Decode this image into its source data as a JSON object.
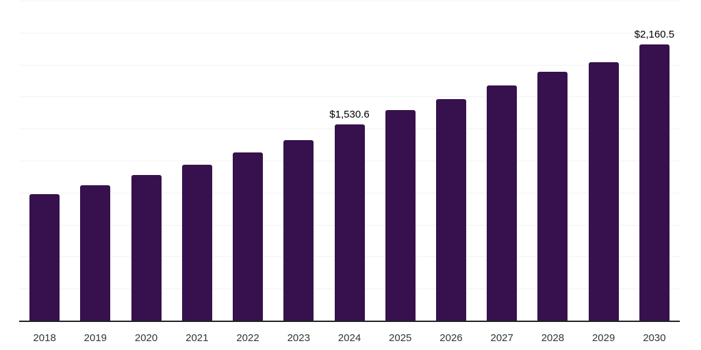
{
  "chart_data": {
    "type": "bar",
    "title": "",
    "xlabel": "",
    "ylabel": "",
    "categories": [
      "2018",
      "2019",
      "2020",
      "2021",
      "2022",
      "2023",
      "2024",
      "2025",
      "2026",
      "2027",
      "2028",
      "2029",
      "2030"
    ],
    "values": [
      987,
      1060,
      1136,
      1216,
      1312,
      1410,
      1530.6,
      1648,
      1733,
      1839,
      1946,
      2020,
      2160.5
    ],
    "data_labels": {
      "2024": "$1,530.6",
      "2030": "$2,160.5"
    },
    "ylim": [
      0,
      2500
    ],
    "gridline_step": 250,
    "grid": "horizontal-only",
    "legend": "none",
    "y_axis_tick_labels": "none",
    "colors": {
      "bar": "#36114d",
      "axis_line": "#222222",
      "gridline": "#f2f2f2",
      "tick_label": "#333333",
      "data_label": "#000000",
      "background": "#ffffff"
    }
  }
}
